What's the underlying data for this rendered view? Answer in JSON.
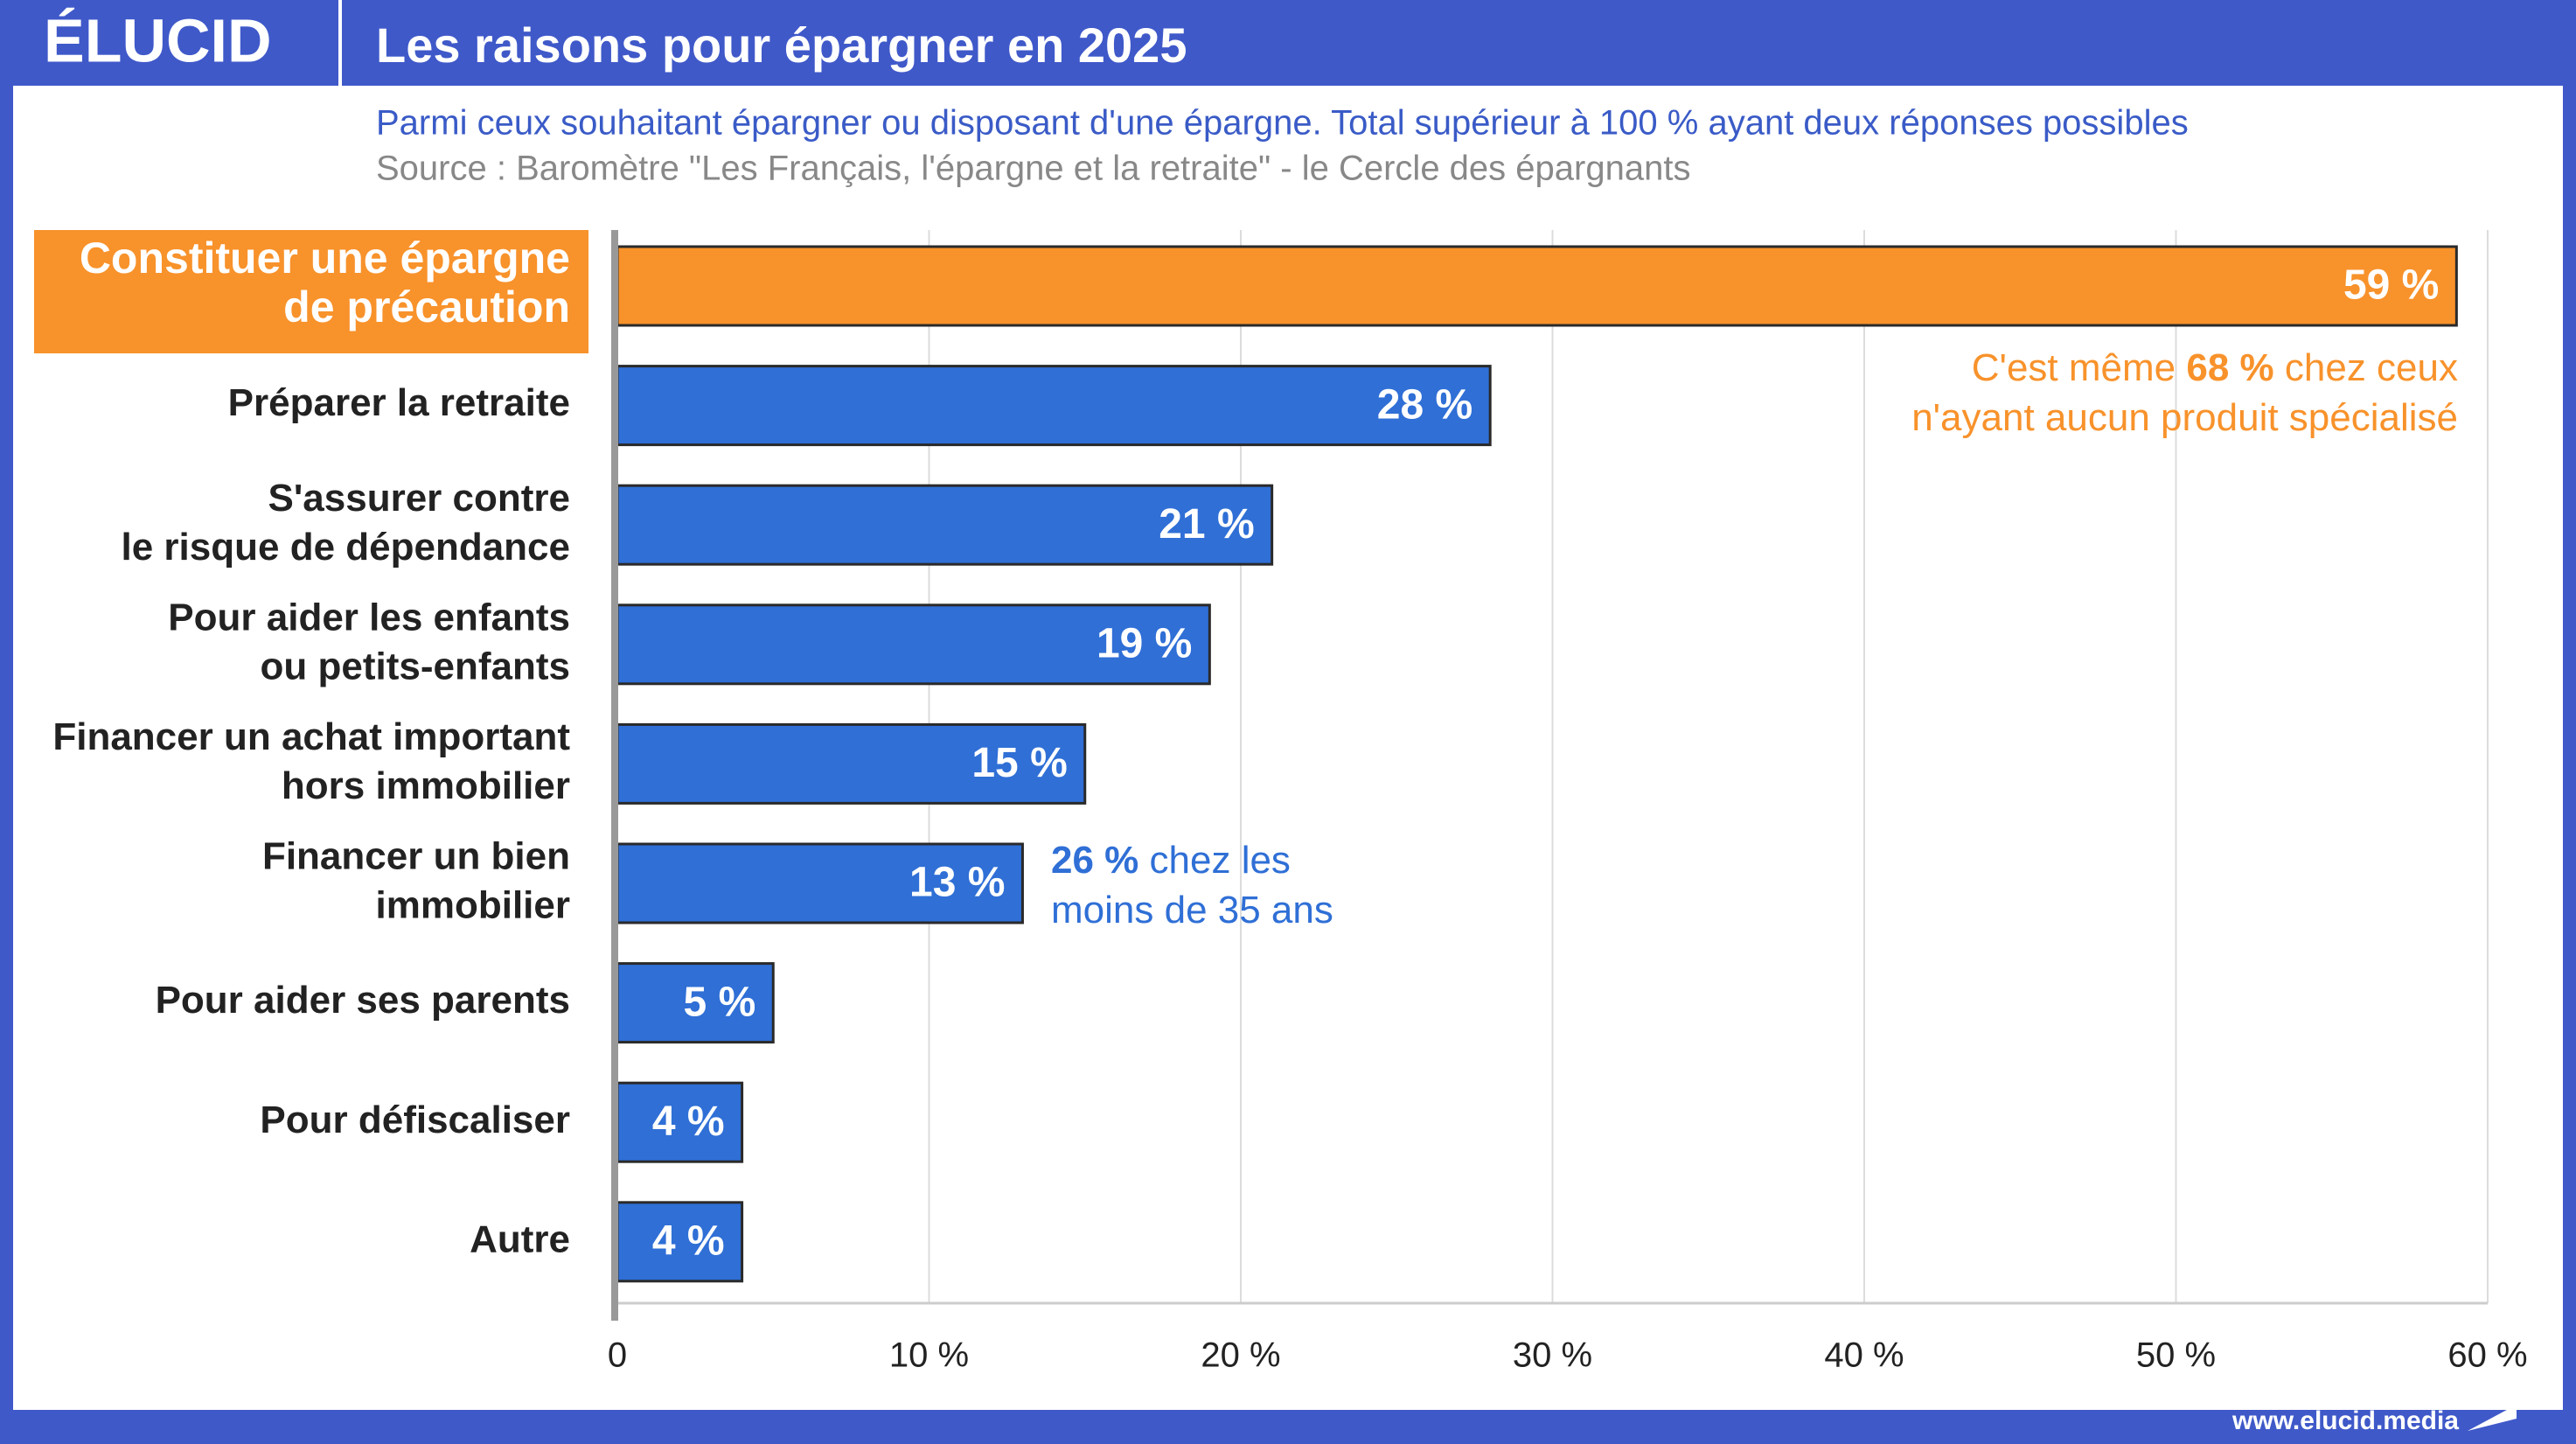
{
  "brand": "ÉLUCID",
  "website": "www.elucid.media",
  "chart_data": {
    "type": "bar",
    "orientation": "horizontal",
    "title": "Les raisons pour épargner en 2025",
    "subtitle": "Parmi ceux souhaitant épargner ou disposant d'une épargne. Total supérieur à 100 % ayant deux réponses possibles",
    "source": "Source : Baromètre \"Les Français, l'épargne et la retraite\" - le Cercle des épargnants",
    "categories": [
      [
        "Constituer une épargne",
        "de précaution"
      ],
      [
        "Préparer la retraite"
      ],
      [
        "S'assurer contre",
        "le risque de dépendance"
      ],
      [
        "Pour aider les enfants",
        "ou petits-enfants"
      ],
      [
        "Financer un achat important",
        "hors immobilier"
      ],
      [
        "Financer un bien",
        "immobilier"
      ],
      [
        "Pour aider ses parents"
      ],
      [
        "Pour défiscaliser"
      ],
      [
        "Autre"
      ]
    ],
    "values": [
      59,
      28,
      21,
      19,
      15,
      13,
      5,
      4,
      4
    ],
    "value_labels": [
      "59 %",
      "28 %",
      "21 %",
      "19 %",
      "15 %",
      "13 %",
      "5 %",
      "4 %",
      "4 %"
    ],
    "colors": [
      "#f8922b",
      "#2f6fd6",
      "#2f6fd6",
      "#2f6fd6",
      "#2f6fd6",
      "#2f6fd6",
      "#2f6fd6",
      "#2f6fd6",
      "#2f6fd6"
    ],
    "highlight": 0,
    "xlim": [
      0,
      60
    ],
    "xticks": [
      0,
      {
        "value": 10,
        "label": "10 %"
      },
      {
        "value": 20,
        "label": "20 %"
      },
      {
        "value": 30,
        "label": "30 %"
      },
      {
        "value": 40,
        "label": "40 %"
      },
      {
        "value": 50,
        "label": "50 %"
      },
      {
        "value": 60,
        "label": "60 %"
      }
    ],
    "grid": true,
    "annotations": [
      {
        "color": "#f8922b",
        "lines": [
          {
            "pre": "C'est même ",
            "bold": "68 %",
            "post": " chez ceux"
          },
          {
            "pre": "n'ayant aucun produit spécialisé"
          }
        ]
      },
      {
        "color": "#2f6fd6",
        "lines": [
          {
            "bold": "26 %",
            "post": " chez les"
          },
          {
            "pre": "moins de 35 ans"
          }
        ]
      }
    ]
  }
}
